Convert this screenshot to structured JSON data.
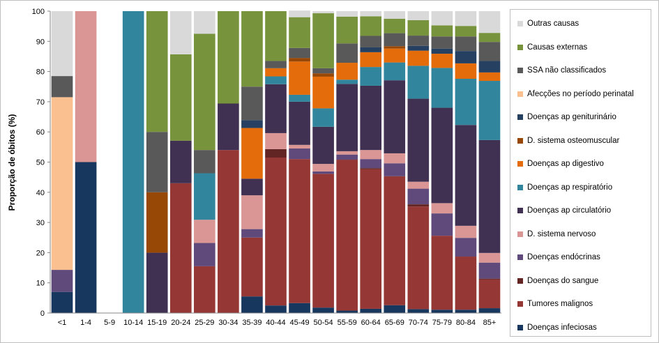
{
  "chart_data": {
    "type": "bar",
    "stacked": true,
    "ylabel": "Proporção de óbitos (%)",
    "ylim": [
      0,
      100
    ],
    "yticks": [
      0,
      10,
      20,
      30,
      40,
      50,
      60,
      70,
      80,
      90,
      100
    ],
    "grid": false,
    "legend_placement": "right",
    "categories": [
      "<1",
      "1-4",
      "5-9",
      "10-14",
      "15-19",
      "20-24",
      "25-29",
      "30-34",
      "35-39",
      "40-44",
      "45-49",
      "50-54",
      "55-59",
      "60-64",
      "65-69",
      "70-74",
      "75-79",
      "80-84",
      "85+"
    ],
    "series": [
      {
        "name": "Doenças infeciosas",
        "color": "#17375e",
        "values": [
          7,
          50,
          0,
          0,
          0,
          0,
          0,
          0,
          5.5,
          2.5,
          3.3,
          1.8,
          0.8,
          1.4,
          2.6,
          1.3,
          1.1,
          1.1,
          1.6
        ]
      },
      {
        "name": "Tumores malignos",
        "color": "#953735",
        "values": [
          0,
          0,
          0,
          0,
          0,
          43,
          15.5,
          54,
          19.5,
          49,
          47.7,
          44.3,
          50,
          46.2,
          42.7,
          34,
          24.5,
          17.6,
          9.5
        ]
      },
      {
        "name": "Doenças do sangue",
        "color": "#632523",
        "values": [
          0,
          0,
          0,
          0,
          0,
          0,
          0,
          0,
          0,
          2.8,
          0,
          0,
          0,
          0.4,
          0,
          0.7,
          0,
          0,
          0.3
        ]
      },
      {
        "name": "Doenças endócrinas",
        "color": "#604a7b",
        "values": [
          7.3,
          0,
          0,
          0,
          0,
          0,
          7.7,
          0,
          2.8,
          0,
          3.5,
          0.8,
          1.7,
          3,
          4.3,
          5.2,
          7.4,
          6.2,
          5.3
        ]
      },
      {
        "name": "D. sistema nervoso",
        "color": "#d99694",
        "values": [
          0,
          50,
          0,
          0,
          0,
          0,
          7.7,
          0,
          11.2,
          5.3,
          1.2,
          2.5,
          1.1,
          3,
          3.3,
          2.3,
          3.4,
          4,
          3.2
        ]
      },
      {
        "name": "Doenças ap circulatório",
        "color": "#403152",
        "values": [
          0,
          0,
          0,
          0,
          20,
          14.1,
          0,
          15.4,
          5.5,
          16.2,
          14.3,
          12.3,
          22.3,
          21.3,
          24.2,
          27.5,
          31.6,
          33.4,
          37.4
        ]
      },
      {
        "name": "Doenças ap respiratório",
        "color": "#31859c",
        "values": [
          0,
          0,
          0,
          100,
          0,
          0,
          15.4,
          0,
          0,
          2.6,
          2.3,
          6.1,
          1.4,
          6.2,
          5.9,
          10.9,
          13.2,
          15.3,
          19.6
        ]
      },
      {
        "name": "Doenças ap digestivo",
        "color": "#e46c0a",
        "values": [
          0,
          0,
          0,
          0,
          0,
          0,
          0,
          0,
          16.8,
          2.7,
          11,
          10.5,
          5.6,
          4.9,
          4.6,
          5,
          4.7,
          5.1,
          2.8
        ]
      },
      {
        "name": "D. sistema osteomuscular",
        "color": "#974806",
        "values": [
          0,
          0,
          0,
          0,
          20,
          0,
          0,
          0,
          0,
          0,
          1.2,
          1.1,
          0,
          0,
          0.8,
          0,
          0,
          0,
          0
        ]
      },
      {
        "name": "Doenças ap geniturinário",
        "color": "#254061",
        "values": [
          0,
          0,
          0,
          0,
          0,
          0,
          0,
          0,
          2.6,
          0,
          0,
          0,
          0,
          1.6,
          0,
          1.6,
          1.7,
          4.1,
          3.8
        ]
      },
      {
        "name": "Afecções no período perinatal",
        "color": "#fac090",
        "values": [
          57.2,
          0,
          0,
          0,
          0,
          0,
          0,
          0,
          0,
          0,
          0,
          0,
          0,
          0,
          0,
          0,
          0,
          0,
          0
        ]
      },
      {
        "name": "SSA não classificados",
        "color": "#595959",
        "values": [
          7,
          0,
          0,
          0,
          20,
          0,
          7.7,
          0,
          11.1,
          2.4,
          3.3,
          1.7,
          6.4,
          3.8,
          4.3,
          3.4,
          4,
          4.8,
          6.3
        ]
      },
      {
        "name": "Causas externas",
        "color": "#77933c",
        "values": [
          0,
          0,
          0,
          0,
          40,
          28.6,
          38.5,
          30.6,
          25,
          16.5,
          10.2,
          18.2,
          8.9,
          6.5,
          4.8,
          5.1,
          3.7,
          3.5,
          3
        ]
      },
      {
        "name": "Outras causas",
        "color": "#d9d9d9",
        "values": [
          21.5,
          0,
          0,
          0,
          0,
          14.3,
          7.5,
          0,
          0,
          0,
          2.2,
          0.7,
          1.8,
          1.7,
          2.5,
          3,
          4.7,
          4.9,
          7.2
        ]
      }
    ]
  }
}
